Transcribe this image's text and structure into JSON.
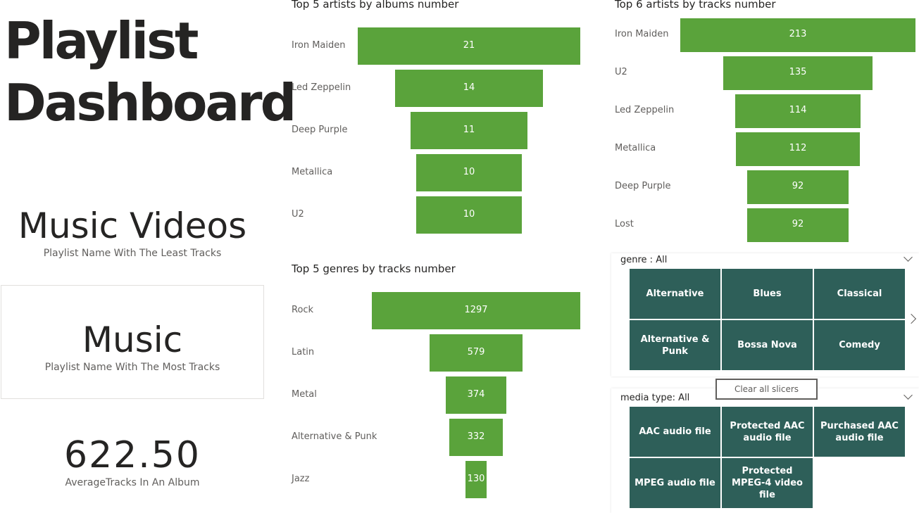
{
  "title_line1": "Playlist",
  "title_line2": "Dashboard",
  "cards": {
    "least": {
      "value": "Music Videos",
      "label": "Playlist Name With The Least Tracks"
    },
    "most": {
      "value": "Music",
      "label": "Playlist Name With The Most Tracks"
    },
    "avg": {
      "value": "622.50",
      "label": "AverageTracks In An Album"
    }
  },
  "colors": {
    "bar": "#5aa33b",
    "tile": "#2e5f59"
  },
  "chart_data": [
    {
      "type": "bar",
      "title": "Top 5 artists by albums number",
      "categories": [
        "Iron Maiden",
        "Led Zeppelin",
        "Deep Purple",
        "Metallica",
        "U2"
      ],
      "values": [
        21,
        14,
        11,
        10,
        10
      ]
    },
    {
      "type": "bar",
      "title": "Top 5 genres by tracks number",
      "categories": [
        "Rock",
        "Latin",
        "Metal",
        "Alternative & Punk",
        "Jazz"
      ],
      "values": [
        1297,
        579,
        374,
        332,
        130
      ]
    },
    {
      "type": "bar",
      "title": "Top 6 artists by tracks number",
      "categories": [
        "Iron Maiden",
        "U2",
        "Led Zeppelin",
        "Metallica",
        "Deep Purple",
        "Lost"
      ],
      "values": [
        213,
        135,
        114,
        112,
        92,
        92
      ]
    }
  ],
  "genre_slicer": {
    "header": "genre : All",
    "items": [
      "Alternative",
      "Blues",
      "Classical",
      "Alternative & Punk",
      "Bossa Nova",
      "Comedy"
    ]
  },
  "clear_button": "Clear all slicers",
  "media_slicer": {
    "header": "media type: All",
    "items": [
      "AAC audio file",
      "Protected AAC audio file",
      "Purchased AAC audio file",
      "MPEG audio file",
      "Protected MPEG-4 video file"
    ]
  }
}
